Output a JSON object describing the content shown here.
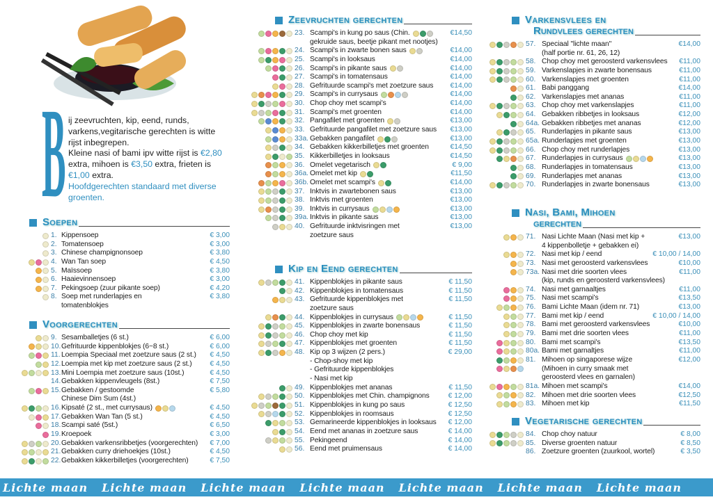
{
  "icon_legend": {
    "W": {
      "name": "gluten-icon",
      "color": "#eadb93"
    },
    "S": {
      "name": "crustacean-icon",
      "color": "#ea6d9c"
    },
    "E": {
      "name": "egg-icon",
      "color": "#f5b54c"
    },
    "T": {
      "name": "celery-icon",
      "color": "#3c9c6a"
    },
    "P": {
      "name": "soy-icon",
      "color": "#eeeacc"
    },
    "O": {
      "name": "sesame-icon",
      "color": "#c2dc9e"
    },
    "G": {
      "name": "mustard-icon",
      "color": "#cfcfc6"
    },
    "N": {
      "name": "nut-icon",
      "color": "#9c6a3a"
    },
    "F": {
      "name": "fish-icon",
      "color": "#5a8bd2"
    },
    "C": {
      "name": "chili-icon",
      "color": "#e8904c"
    },
    "M": {
      "name": "milk-icon",
      "color": "#b6d8ec"
    }
  },
  "intro": {
    "dropcap": "B",
    "line1": "ij zeevruchten, kip, eend, runds, varkens,vegitarische gerechten is witte rijst inbegrepen.",
    "line2a": "Kleine nasi of bami ipv witte rijst is ",
    "price1": "€2,80",
    "line2b": " extra, mihoen is ",
    "price2": "€3,50",
    "line2c": " extra, frieten is ",
    "price3": "€1,00",
    "line2d": " extra.",
    "line3": "Hoofdgerechten standaard met diverse groenten."
  },
  "footer": {
    "text": "Lichte maan"
  },
  "sections": [
    {
      "title": "Soepen",
      "items": [
        {
          "icons": "P",
          "n": "1.",
          "name": "Kippensoep",
          "price": "€ 3,00"
        },
        {
          "icons": "P",
          "n": "2.",
          "name": "Tomatensoep",
          "price": "€ 3,00"
        },
        {
          "icons": "P",
          "n": "3.",
          "name": "Chinese champignonsoep",
          "price": "€ 3,80"
        },
        {
          "icons": "WSP",
          "n": "4.",
          "name": "Wan Tan soep",
          "price": "€ 4,50"
        },
        {
          "icons": "EP",
          "n": "5.",
          "name": "Maïssoep",
          "price": "€ 3,80"
        },
        {
          "icons": "EP",
          "n": "6.",
          "name": "Haaievinnensoep",
          "price": "€ 3,00"
        },
        {
          "icons": "EP",
          "n": "7.",
          "name": "Pekingsoep (zuur pikante soep)",
          "price": "€ 4,20"
        },
        {
          "icons": "P",
          "n": "8.",
          "name": "Soep met runderlapjes en",
          "price": "€ 3,80",
          "sub": [
            "tomatenblokjes"
          ]
        }
      ]
    },
    {
      "title": "Voorgerechten",
      "items": [
        {
          "icons": "WP",
          "n": "9.",
          "name": "Sesamballetjes (6 st.)",
          "price": "€ 6,00"
        },
        {
          "icons": "EWP",
          "n": "10.",
          "name": "Gefrituurde kippenblokjes (6~8 st.)",
          "price": "€ 6,00"
        },
        {
          "icons": "OSW",
          "n": "11.",
          "name": "Loempia Speciaal met zoetzure saus (2 st.)",
          "price": "€ 4,50"
        },
        {
          "icons": "OW",
          "n": "12.",
          "name": "Loempia met kip met zoetzure saus (2 st.)",
          "price": "€ 4,50"
        },
        {
          "icons": "WOPW",
          "n": "13.",
          "name": "Mini Loempia met zoetzure saus (10st.)",
          "price": "€ 4,50"
        },
        {
          "icons": "",
          "n": "14.",
          "name": "Gebakken kippenvleugels (8st.)",
          "price": "€ 7,50"
        },
        {
          "icons": "OSW",
          "n": "15.",
          "name": "Gebakken / gestoomde",
          "price": "€ 5,80",
          "sub": [
            "Chinese Dim Sum (4st.)"
          ]
        },
        {
          "icons": "WTOP",
          "n": "16.",
          "name": "Kipsaté (2 st., met currysaus)",
          "after": "EWM",
          "price": "€ 4,50"
        },
        {
          "icons": "PSW",
          "n": "17.",
          "name": "Gebakken Wan Tan (5 st.)",
          "price": "€ 4,50"
        },
        {
          "icons": "SP",
          "n": "18.",
          "name": "Scampi saté (5st.)",
          "price": "€ 6,50"
        },
        {
          "icons": "S",
          "n": "19.",
          "name": "Kroepoek",
          "price": "€ 3,00"
        },
        {
          "icons": "WGOP",
          "n": "20.",
          "name": "Gebakken varkensribbetjes (voorgerechten)",
          "price": "€ 7,00"
        },
        {
          "icons": "WOPW",
          "n": "21.",
          "name": "Gebakken curry driehoekjes (10st.)",
          "price": "€ 4,50"
        },
        {
          "icons": "WTPO",
          "n": "22.",
          "name": "Gebakken kikkerbilletjes (voorgerechten)",
          "price": "€ 7,50"
        }
      ]
    },
    {
      "title": "Zeevruchten gerechten",
      "items": [
        {
          "icons": "OSENP",
          "n": "23.",
          "name": "Scampi's in kung po saus (Chin.",
          "after": "WTG",
          "price": "€14,50",
          "sub": [
            "gekruide saus, beetje pikant met nootjes)"
          ]
        },
        {
          "icons": "OSETP",
          "n": "24.",
          "name": "Scampi's in zwarte bonen saus",
          "after": "WG",
          "price": "€14,00"
        },
        {
          "icons": "OTESP",
          "n": "25.",
          "name": "Scampi's in looksaus",
          "price": "€14,00"
        },
        {
          "icons": "OSTP",
          "n": "26.",
          "name": "Scampi's in pikante saus",
          "after": "WG",
          "price": "€14,00"
        },
        {
          "icons": "STP",
          "n": "27.",
          "name": "Scampi's in tomatensaus",
          "price": "€14,00"
        },
        {
          "icons": "WSP",
          "n": "28.",
          "name": "Gefrituurde scampi's met zoetzure saus",
          "price": "€14,00"
        },
        {
          "icons": "WCSETP",
          "n": "29.",
          "name": "Scampi's in currysaus",
          "after": "OCMG",
          "price": "€14,00"
        },
        {
          "icons": "WTGOSP",
          "n": "30.",
          "name": "Chop choy met scampi's",
          "price": "€14,00"
        },
        {
          "icons": "WGOSTP",
          "n": "31.",
          "name": "Scampi's met groenten",
          "price": "€14,00"
        },
        {
          "icons": "OFETP",
          "n": "32.",
          "name": "Pangafilet met groenten",
          "after": "WG",
          "price": "€13,00"
        },
        {
          "icons": "WFEP",
          "n": "33.",
          "name": "Gefrituurde pangafilet met zoetzure saus",
          "price": "€13,00"
        },
        {
          "icons": "OFEP",
          "n": "33a.",
          "name": "Gebakken pangafilet",
          "after": "WTG",
          "price": "€13,00"
        },
        {
          "icons": "WGTP",
          "n": "34.",
          "name": "Gebakken kikkerbilletjes met groenten",
          "price": "€14,50"
        },
        {
          "icons": "WTPO",
          "n": "35.",
          "name": "Kikkerbilletjes in looksaus",
          "price": "€14,50"
        },
        {
          "icons": "COEP",
          "n": "36.",
          "name": "Omelet vegetarisch",
          "after": "WT",
          "price": "€  9,00"
        },
        {
          "icons": "COEP",
          "n": "36a.",
          "name": "Omelet met kip",
          "after": "WT",
          "price": "€11,50"
        },
        {
          "icons": "COESP",
          "n": "36b.",
          "name": "Omelet met scampi's",
          "after": "WT",
          "price": "€14,00"
        },
        {
          "icons": "WOGTP",
          "n": "37.",
          "name": "Inktvis in zwartebonen saus",
          "price": "€13,00"
        },
        {
          "icons": "WOGTP",
          "n": "38.",
          "name": "Inktvis met groenten",
          "price": "€13,00"
        },
        {
          "icons": "WCGTP",
          "n": "39.",
          "name": "Inktvis in currysaus",
          "after": "OWME",
          "price": "€13,00"
        },
        {
          "icons": "OGTP",
          "n": "39a.",
          "name": "Inktvis in pikante saus",
          "price": "€13,00"
        },
        {
          "icons": "GWP",
          "n": "40.",
          "name": "Gefrituurde inktvisringen met",
          "price": "€13,00",
          "sub": [
            "zoetzure saus"
          ]
        }
      ]
    },
    {
      "title": "Kip en Eend gerechten",
      "items": [
        {
          "icons": "WGOTP",
          "n": "41.",
          "name": "Kippenblokjes in pikante saus",
          "price": "€ 11,50"
        },
        {
          "icons": "TP",
          "n": "42.",
          "name": "Kippenblokjes in tomatensaus",
          "price": "€ 11,50"
        },
        {
          "icons": "EWP",
          "n": "43.",
          "name": "Gefrituurde kippenblokjes met",
          "price": "€ 11,50",
          "sub": [
            "zoetzure saus"
          ]
        },
        {
          "icons": "WCTP",
          "n": "44.",
          "name": "Kippenblokjes in currysaus",
          "after": "OWME",
          "price": "€ 11,50"
        },
        {
          "icons": "WTGOP",
          "n": "45.",
          "name": "Kippenblokjes in zwarte bonensaus",
          "price": "€ 11,50"
        },
        {
          "icons": "WTGOP",
          "n": "46.",
          "name": "Chop choy met kip",
          "price": "€ 11,50"
        },
        {
          "icons": "WGOTP",
          "n": "47.",
          "name": "Kippenblokjes met groenten",
          "price": "€ 11,50"
        },
        {
          "icons": "WTGEP",
          "n": "48.",
          "name": "Kip op 3 wijzen (2 pers.)",
          "price": "€ 29,00",
          "sub": [
            "- Chop-shoy met kip",
            "- Gefrituurde kippenblokjes",
            "- Nasi met kip"
          ]
        },
        {
          "icons": "TP",
          "n": "49.",
          "name": "Kippenblokjes met ananas",
          "price": "€ 11,50"
        },
        {
          "icons": "WGOTP",
          "n": "50.",
          "name": "Kippenblokjes met Chin. champignons",
          "price": "€ 12,00"
        },
        {
          "icons": "WGONTP",
          "n": "51.",
          "name": "Kippenblokjes in kung po saus",
          "price": "€ 12,50"
        },
        {
          "icons": "WGMTP",
          "n": "52.",
          "name": "Kippenblokjes in roomsaus",
          "price": "€ 12,50"
        },
        {
          "icons": "TWOP",
          "n": "53.",
          "name": "Gemarineerde kippenblokjes in looksaus",
          "price": "€ 12,00"
        },
        {
          "icons": "WTP",
          "n": "54.",
          "name": "Eend met ananas in zoetzure saus",
          "price": "€ 14,00"
        },
        {
          "icons": "GWOP",
          "n": "55.",
          "name": "Pekingeend",
          "price": "€ 14,00"
        },
        {
          "icons": "WP",
          "n": "56.",
          "name": "Eend met pruimensaus",
          "price": "€ 14,00"
        }
      ]
    },
    {
      "title": "Varkensvlees en",
      "title2": "Rundvlees gerechten",
      "items": [
        {
          "icons": "WTGCP",
          "n": "57.",
          "name": "Speciaal \"lichte maan\"",
          "price": "€14,00",
          "sub": [
            "(half portie nr. 61, 26, 12)"
          ]
        },
        {
          "icons": "WTGOP",
          "n": "58.",
          "name": "Chop choy met geroosterd varkensvlees",
          "price": "€11,00"
        },
        {
          "icons": "WTGOP",
          "n": "59.",
          "name": "Varkenslapjes in zwarte bonensaus",
          "price": "€11,00"
        },
        {
          "icons": "WTGOP",
          "n": "60.",
          "name": "Varkenslapjes met groenten",
          "price": "€11,00"
        },
        {
          "icons": "CP",
          "n": "61.",
          "name": "Babi panggang",
          "price": "€14,00"
        },
        {
          "icons": "TP",
          "n": "62.",
          "name": "Varkenslapjes met ananas",
          "price": "€11,00"
        },
        {
          "icons": "WTGOP",
          "n": "63.",
          "name": "Chop choy met varkenslapjes",
          "price": "€11,00"
        },
        {
          "icons": "WTOP",
          "n": "64.",
          "name": "Gebakken ribbetjes in looksaus",
          "price": "€12,00"
        },
        {
          "icons": "TP",
          "n": "64a.",
          "name": "Gebakken ribbetjes met ananas",
          "price": "€12,00"
        },
        {
          "icons": "WTGP",
          "n": "65.",
          "name": "Runderlapjes in pikante saus",
          "price": "€13,00"
        },
        {
          "icons": "WTGOP",
          "n": "65a.",
          "name": "Runderlapjes met groenten",
          "price": "€13,00"
        },
        {
          "icons": "WTGOP",
          "n": "66.",
          "name": "Chop choy met runderlapjes",
          "price": "€13,00"
        },
        {
          "icons": "TWCP",
          "n": "67.",
          "name": "Runderlapjes in currysaus",
          "after": "OWME",
          "price": "€13,00"
        },
        {
          "icons": "TP",
          "n": "68.",
          "name": "Runderlapjes in tomatensaus",
          "price": "€13,00"
        },
        {
          "icons": "TP",
          "n": "69.",
          "name": "Runderlapjes met ananas",
          "price": "€13,00"
        },
        {
          "icons": "WTGOP",
          "n": "70.",
          "name": "Runderlapjes in zwarte bonensaus",
          "price": "€13,00"
        }
      ]
    },
    {
      "title": "Nasi, Bami, Mihoen",
      "title2": "gerechten",
      "items": [
        {
          "icons": "WEP",
          "n": "71.",
          "name": "Nasi Lichte Maan (Nasi met kip +",
          "price": "€13,00",
          "sub": [
            "4 kippenbolletje + gebakken ei)"
          ]
        },
        {
          "icons": "WEP",
          "n": "72.",
          "name": "Nasi met kip / eend",
          "price": "€ 10,00 / 14,00"
        },
        {
          "icons": "EP",
          "n": "73.",
          "name": "Nasi met geroosterd varkensvlees",
          "price": "€10,00"
        },
        {
          "icons": "EP",
          "n": "73a.",
          "name": "Nasi met drie soorten vlees",
          "price": "€11,00",
          "sub": [
            "(kip, runds en geroosterd varkensvlees)"
          ]
        },
        {
          "icons": "SEP",
          "n": "74.",
          "name": "Nasi met garnaaltjes",
          "price": "€11,00"
        },
        {
          "icons": "SEP",
          "n": "75.",
          "name": "Nasi met scampi's",
          "price": "€13,50"
        },
        {
          "icons": "WOEP",
          "n": "76.",
          "name": "Bami Lichte Maan (idem nr. 71)",
          "price": "€13,00"
        },
        {
          "icons": "WOP",
          "n": "77.",
          "name": "Bami met kip / eend",
          "price": "€ 10,00 / 14,00"
        },
        {
          "icons": "WOP",
          "n": "78.",
          "name": "Bami met geroosterd varkensvlees",
          "price": "€10,00"
        },
        {
          "icons": "WOP",
          "n": "79.",
          "name": "Bami met drie soorten vlees",
          "price": "€11,00"
        },
        {
          "icons": "SWOP",
          "n": "80.",
          "name": "Bami met scampi's",
          "price": "€13,50"
        },
        {
          "icons": "SWOP",
          "n": "80a.",
          "name": "Bami met garnaltjes",
          "price": "€11,00"
        },
        {
          "icons": "TOEP",
          "n": "81.",
          "name": "Mihoen op singaporese wijze",
          "price": "€12,00",
          "sub": [
            "(Mihoen in curry smaak met",
            "geroosterd vlees en garnalen)"
          ],
          "subicons": "SWCM"
        },
        {
          "icons": "WSEOP",
          "n": "81a.",
          "name": "Mihoen met scampi's",
          "price": "€14,00"
        },
        {
          "icons": "WOEP",
          "n": "82.",
          "name": "Mihoen met drie soorten vlees",
          "price": "€12,50"
        },
        {
          "icons": "WOEP",
          "n": "83.",
          "name": "Mihoen met kip",
          "price": "€11,50"
        }
      ]
    },
    {
      "title": "Vegetarische gerechten",
      "items": [
        {
          "icons": "WTOGP",
          "n": "84.",
          "name": "Chop choy natuur",
          "price": "€  8,00"
        },
        {
          "icons": "WTOGP",
          "n": "85.",
          "name": "Diverse groenten natuur",
          "price": "€  8,50"
        },
        {
          "icons": "",
          "n": "86.",
          "name": "Zoetzure groenten (zuurkool, wortel)",
          "price": "€  3,50"
        }
      ]
    }
  ]
}
